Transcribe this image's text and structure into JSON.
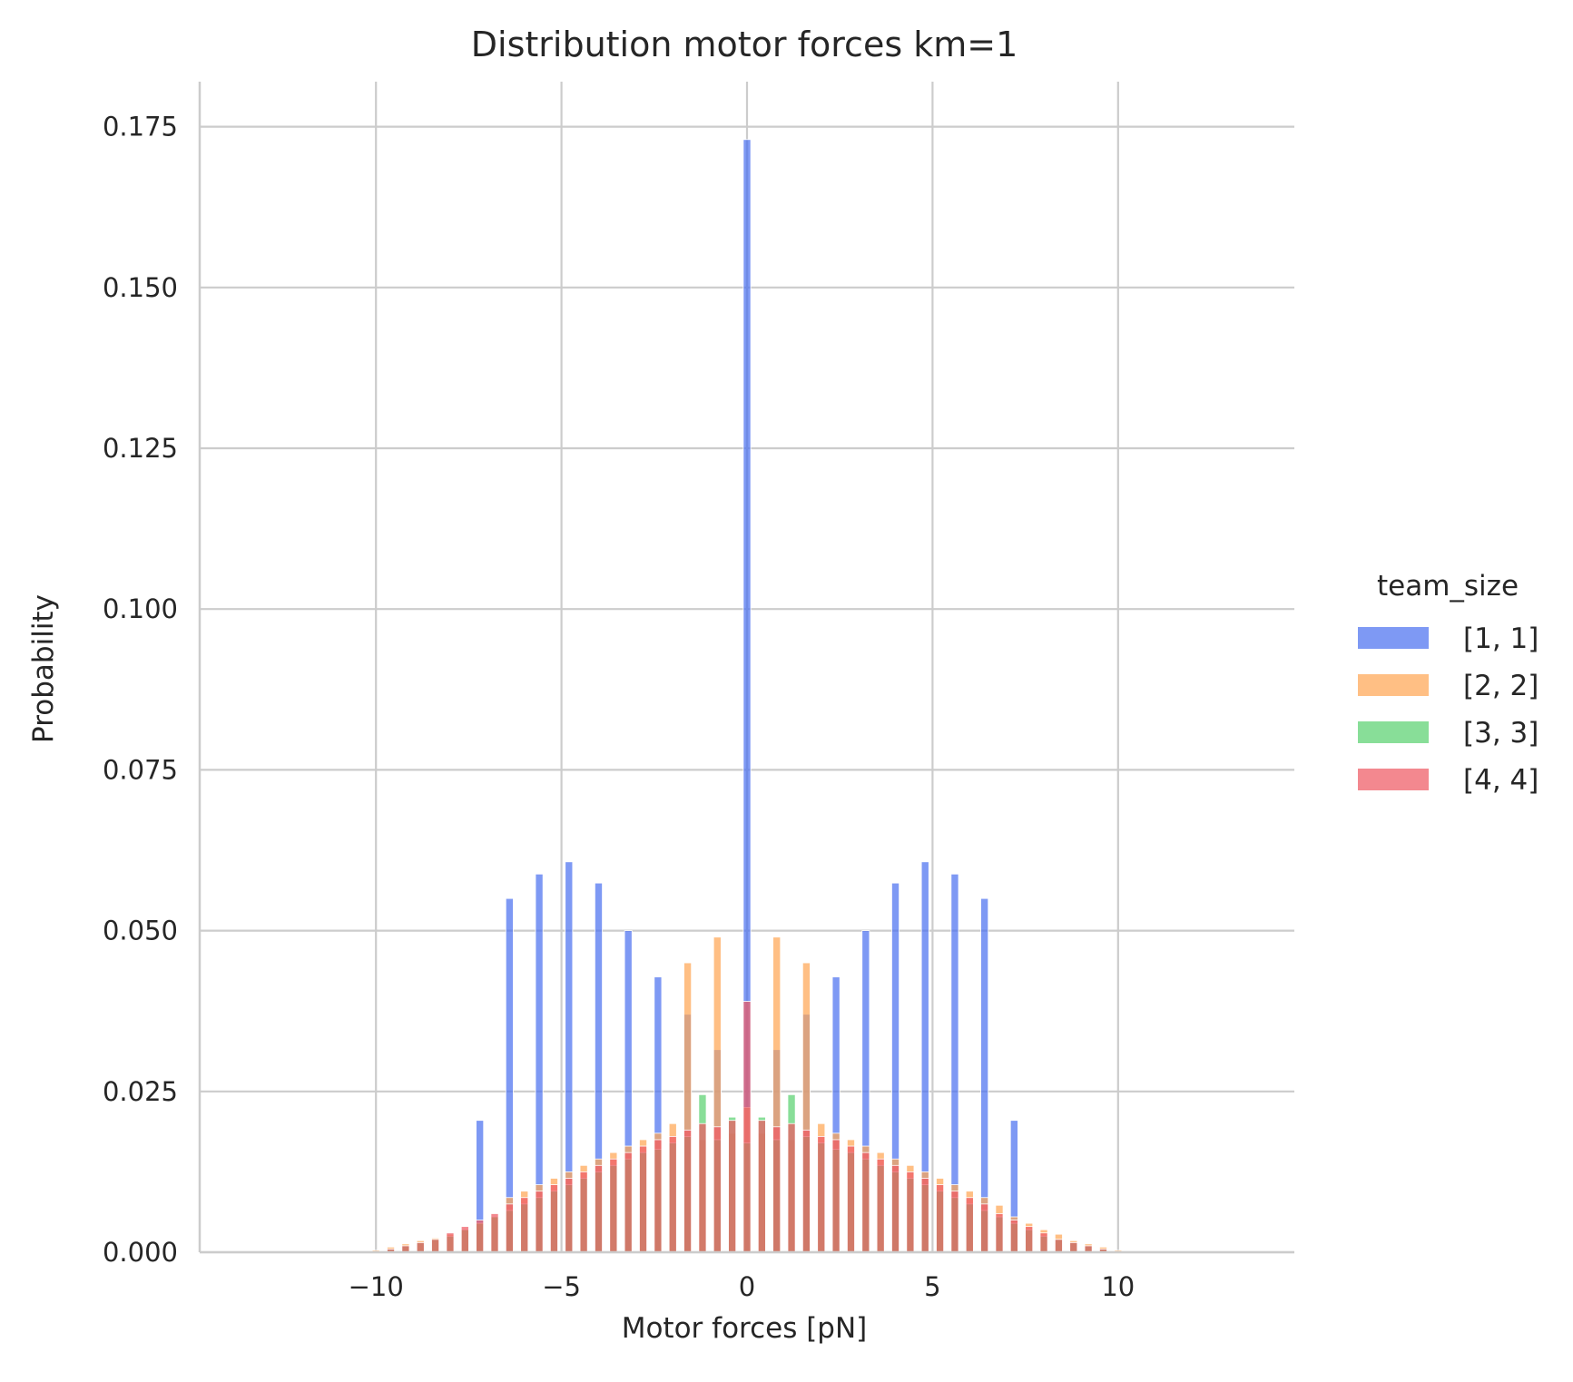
{
  "chart_data": {
    "type": "bar",
    "title": "Distribution motor forces km=1",
    "xlabel": "Motor forces [pN]",
    "ylabel": "Probability",
    "xlim": [
      -14.75,
      14.75
    ],
    "ylim": [
      0,
      0.182
    ],
    "grid": true,
    "x_ticks": [
      -10,
      -5,
      0,
      5,
      10
    ],
    "x_tick_labels": [
      "−10",
      "−5",
      "0",
      "5",
      "10"
    ],
    "y_ticks": [
      0,
      0.025,
      0.05,
      0.075,
      0.1,
      0.125,
      0.15,
      0.175
    ],
    "y_tick_labels": [
      "0.000",
      "0.025",
      "0.050",
      "0.075",
      "0.100",
      "0.125",
      "0.150",
      "0.175"
    ],
    "bin_width": 0.2,
    "legend": {
      "title": "team_size",
      "placement": "outside-right"
    },
    "series": [
      {
        "name": "[1, 1]",
        "color": "#4c72f0",
        "x": [
          -7.2,
          -6.4,
          -5.6,
          -4.8,
          -4.0,
          -3.2,
          -2.4,
          -1.6,
          -0.8,
          0.0,
          0.8,
          1.6,
          2.4,
          3.2,
          4.0,
          4.8,
          5.6,
          6.4,
          7.2
        ],
        "values": [
          0.0205,
          0.055,
          0.0588,
          0.0607,
          0.0574,
          0.05,
          0.0428,
          0.037,
          0.0315,
          0.173,
          0.0315,
          0.037,
          0.0428,
          0.05,
          0.0574,
          0.0607,
          0.0588,
          0.055,
          0.0205
        ]
      },
      {
        "name": "[2, 2]",
        "color": "#ffa654",
        "x": [
          -10.0,
          -9.6,
          -9.2,
          -8.8,
          -8.4,
          -8.0,
          -7.6,
          -7.2,
          -6.8,
          -6.4,
          -6.0,
          -5.6,
          -5.2,
          -4.8,
          -4.4,
          -4.0,
          -3.6,
          -3.2,
          -2.8,
          -2.4,
          -2.0,
          -1.6,
          -1.2,
          -0.8,
          -0.4,
          0.0,
          0.4,
          0.8,
          1.2,
          1.6,
          2.0,
          2.4,
          2.8,
          3.2,
          3.6,
          4.0,
          4.4,
          4.8,
          5.2,
          5.6,
          6.0,
          6.4,
          6.8,
          7.2,
          7.6,
          8.0,
          8.4,
          8.8,
          9.2,
          9.6,
          10.0
        ],
        "values": [
          0.0003,
          0.0008,
          0.0013,
          0.0018,
          0.0022,
          0.0028,
          0.0035,
          0.0045,
          0.0055,
          0.0085,
          0.0095,
          0.0105,
          0.0115,
          0.0125,
          0.0135,
          0.0145,
          0.0155,
          0.0165,
          0.0175,
          0.0185,
          0.02,
          0.045,
          0.0175,
          0.049,
          0.0185,
          0.0225,
          0.0185,
          0.049,
          0.0175,
          0.045,
          0.02,
          0.0185,
          0.0175,
          0.0165,
          0.0155,
          0.0145,
          0.0135,
          0.0125,
          0.0115,
          0.0105,
          0.0095,
          0.0085,
          0.0073,
          0.0055,
          0.0045,
          0.0035,
          0.0028,
          0.0018,
          0.0013,
          0.0008,
          0.0003
        ]
      },
      {
        "name": "[3, 3]",
        "color": "#5ad170",
        "x": [
          -9.6,
          -9.2,
          -8.8,
          -8.4,
          -8.0,
          -7.6,
          -7.2,
          -6.8,
          -6.4,
          -6.0,
          -5.6,
          -5.2,
          -4.8,
          -4.4,
          -4.0,
          -3.6,
          -3.2,
          -2.8,
          -2.4,
          -2.0,
          -1.6,
          -1.2,
          -0.8,
          -0.4,
          0.0,
          0.4,
          0.8,
          1.2,
          1.6,
          2.0,
          2.4,
          2.8,
          3.2,
          3.6,
          4.0,
          4.4,
          4.8,
          5.2,
          5.6,
          6.0,
          6.4,
          6.8,
          7.2,
          7.6,
          8.0,
          8.4,
          8.8,
          9.2,
          9.6
        ],
        "values": [
          0.0005,
          0.001,
          0.0015,
          0.002,
          0.0025,
          0.0035,
          0.0045,
          0.0055,
          0.0065,
          0.0075,
          0.0085,
          0.0095,
          0.0105,
          0.0115,
          0.0125,
          0.0135,
          0.0145,
          0.0155,
          0.016,
          0.017,
          0.018,
          0.0245,
          0.0175,
          0.021,
          0.017,
          0.021,
          0.0175,
          0.0245,
          0.018,
          0.017,
          0.016,
          0.0155,
          0.0145,
          0.0135,
          0.0125,
          0.0115,
          0.0105,
          0.0095,
          0.0085,
          0.0075,
          0.0065,
          0.0055,
          0.0045,
          0.0035,
          0.0025,
          0.002,
          0.0015,
          0.001,
          0.0005
        ]
      },
      {
        "name": "[4, 4]",
        "color": "#ef5a64",
        "x": [
          -9.6,
          -9.2,
          -8.8,
          -8.4,
          -8.0,
          -7.6,
          -7.2,
          -6.8,
          -6.4,
          -6.0,
          -5.6,
          -5.2,
          -4.8,
          -4.4,
          -4.0,
          -3.6,
          -3.2,
          -2.8,
          -2.4,
          -2.0,
          -1.6,
          -1.2,
          -0.8,
          -0.4,
          0.0,
          0.4,
          0.8,
          1.2,
          1.6,
          2.0,
          2.4,
          2.8,
          3.2,
          3.6,
          4.0,
          4.4,
          4.8,
          5.2,
          5.6,
          6.0,
          6.4,
          6.8,
          7.2,
          7.6,
          8.0,
          8.4,
          8.8,
          9.2,
          9.6
        ],
        "values": [
          0.0005,
          0.001,
          0.0015,
          0.002,
          0.003,
          0.004,
          0.005,
          0.006,
          0.0075,
          0.0085,
          0.0095,
          0.0105,
          0.0115,
          0.0125,
          0.0135,
          0.0145,
          0.0155,
          0.0165,
          0.0175,
          0.018,
          0.019,
          0.02,
          0.0195,
          0.0205,
          0.039,
          0.0205,
          0.0195,
          0.02,
          0.019,
          0.018,
          0.0175,
          0.0165,
          0.0155,
          0.0145,
          0.0135,
          0.0125,
          0.0115,
          0.0105,
          0.0095,
          0.0085,
          0.0075,
          0.006,
          0.005,
          0.004,
          0.003,
          0.002,
          0.0015,
          0.001,
          0.0005
        ]
      }
    ]
  }
}
